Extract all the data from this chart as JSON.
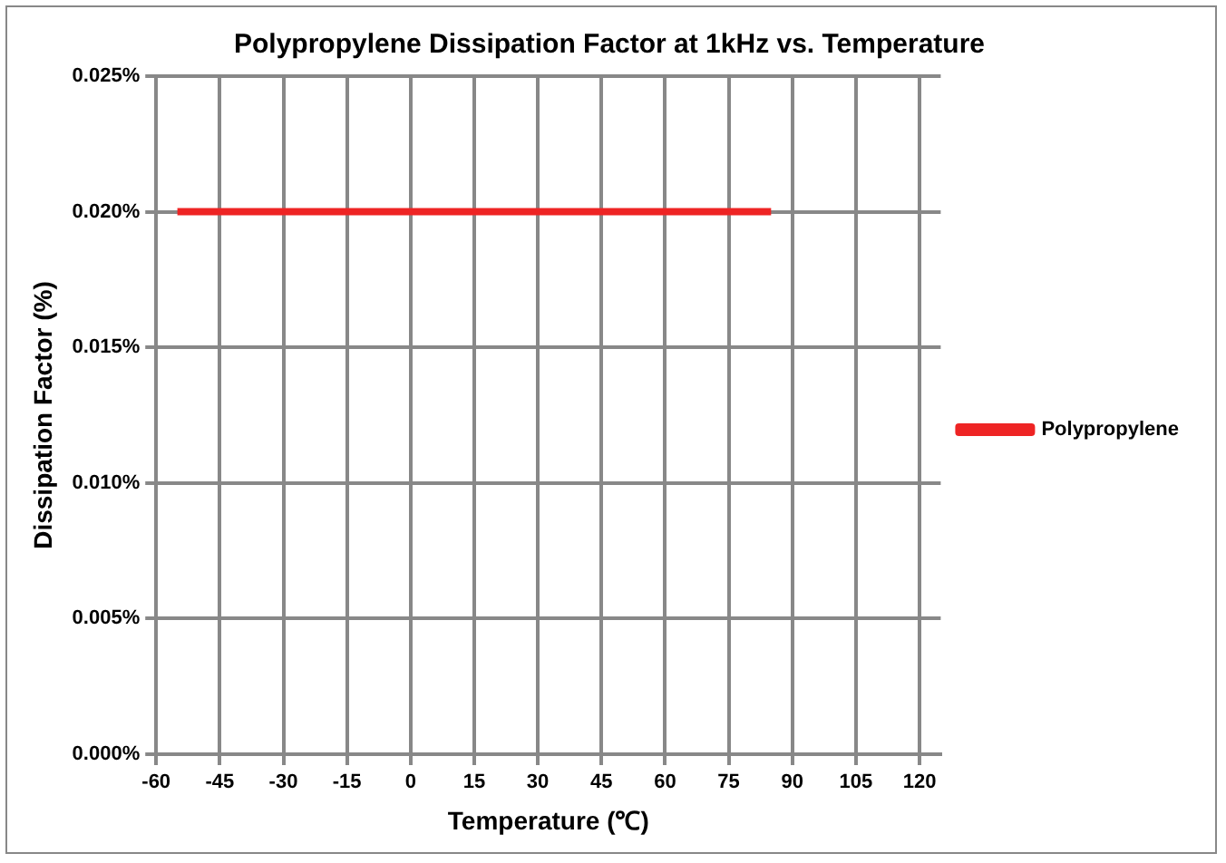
{
  "chart_data": {
    "type": "line",
    "title": "Polypropylene Dissipation Factor at 1kHz vs. Temperature",
    "xlabel": "Temperature (℃)",
    "ylabel": "Dissipation Factor (%)",
    "series": [
      {
        "name": "Polypropylene",
        "color": "#ee2424",
        "x": [
          -55,
          85
        ],
        "values": [
          0.02,
          0.02
        ]
      }
    ],
    "xlim": [
      -60,
      125
    ],
    "xticks": [
      -60,
      -45,
      -30,
      -15,
      0,
      15,
      30,
      45,
      60,
      75,
      90,
      105,
      120
    ],
    "ylim": [
      0,
      0.025
    ],
    "yticks": [
      {
        "value": 0,
        "label": "0.000%"
      },
      {
        "value": 0.005,
        "label": "0.005%"
      },
      {
        "value": 0.01,
        "label": "0.010%"
      },
      {
        "value": 0.015,
        "label": "0.015%"
      },
      {
        "value": 0.02,
        "label": "0.020%"
      },
      {
        "value": 0.025,
        "label": "0.025%"
      }
    ],
    "grid": true,
    "legend": "right",
    "marker": "none",
    "line_style": "solid"
  }
}
